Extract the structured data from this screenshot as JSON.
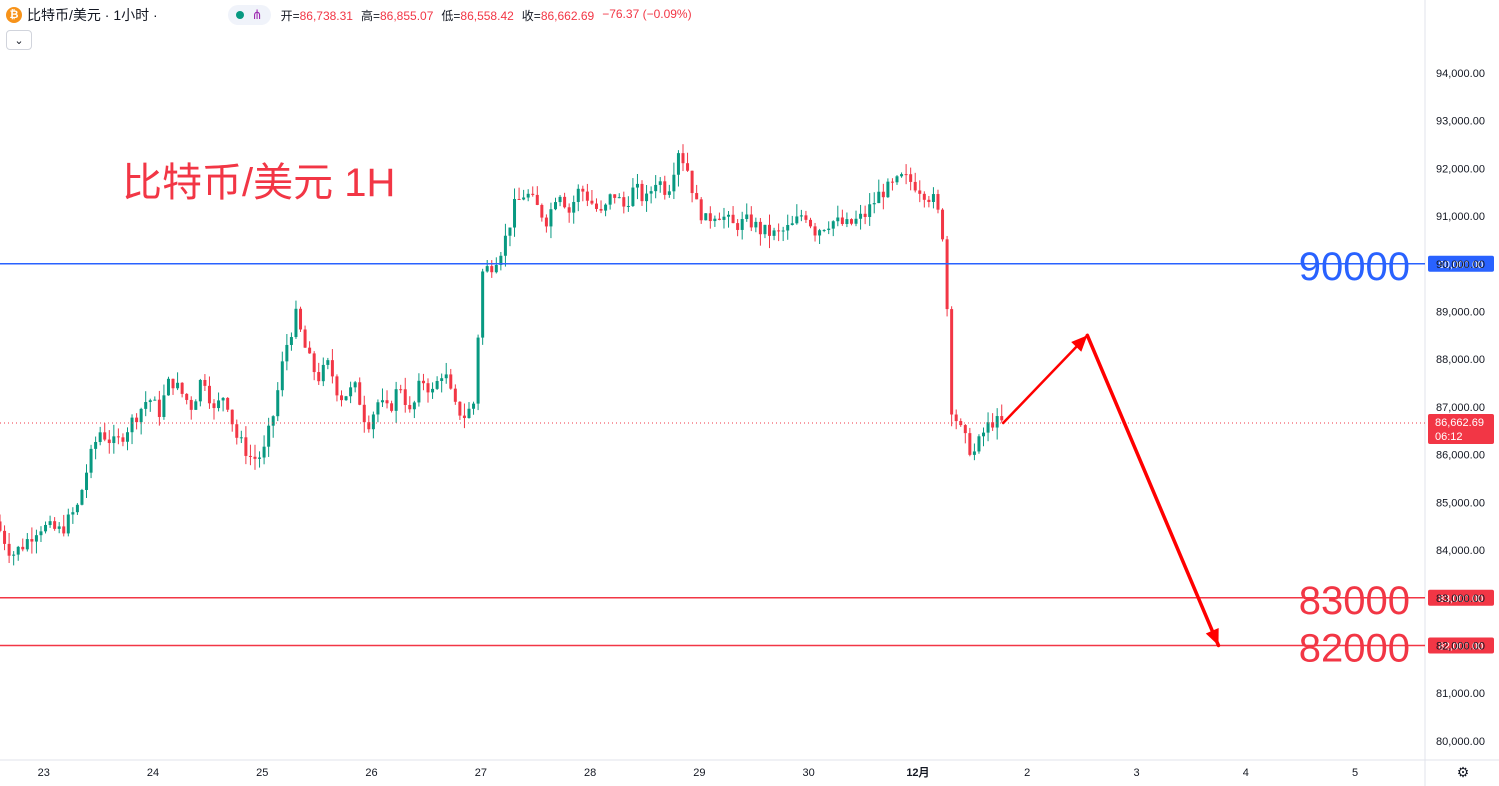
{
  "header": {
    "symbol": "比特币/美元 · 1小时 ·",
    "coin_icon": "bitcoin-icon",
    "open_label": "开=",
    "open_value": "86,738.31",
    "high_label": "高=",
    "high_value": "86,855.07",
    "low_label": "低=",
    "low_value": "86,558.42",
    "close_label": "收=",
    "close_value": "86,662.69",
    "change_value": "−76.37 (−0.09%)"
  },
  "collapse_icon": "chevron-down-icon",
  "colors": {
    "up": "#089981",
    "down": "#f23645",
    "resistance": "#2962ff",
    "support": "#f23645",
    "arrow": "#ff0000"
  },
  "chart_data": {
    "type": "candlestick",
    "title": "比特币/美元 1H",
    "ylim": [
      79600,
      94900
    ],
    "y_ticks": [
      80000,
      81000,
      82000,
      83000,
      84000,
      85000,
      86000,
      87000,
      88000,
      89000,
      90000,
      91000,
      92000,
      93000,
      94000
    ],
    "y_tick_labels": [
      "80,000.00",
      "81,000.00",
      "82,000.00",
      "83,000.00",
      "84,000.00",
      "85,000.00",
      "86,000.00",
      "87,000.00",
      "88,000.00",
      "89,000.00",
      "90,000.00",
      "91,000.00",
      "92,000.00",
      "93,000.00",
      "94,000.00"
    ],
    "x_ticks": [
      {
        "label": "23",
        "day": 0
      },
      {
        "label": "24",
        "day": 1
      },
      {
        "label": "25",
        "day": 2
      },
      {
        "label": "26",
        "day": 3
      },
      {
        "label": "27",
        "day": 4
      },
      {
        "label": "28",
        "day": 5
      },
      {
        "label": "29",
        "day": 6
      },
      {
        "label": "30",
        "day": 7
      },
      {
        "label": "12月",
        "day": 8,
        "bold": true
      },
      {
        "label": "2",
        "day": 9
      },
      {
        "label": "3",
        "day": 10
      },
      {
        "label": "4",
        "day": 11
      },
      {
        "label": "5",
        "day": 12
      }
    ],
    "x_range_days": [
      -0.4,
      12.64
    ],
    "last_day": 8.78,
    "waypoints": [
      [
        -0.4,
        84600
      ],
      [
        -0.25,
        83900
      ],
      [
        -0.15,
        84100
      ],
      [
        0,
        84500
      ],
      [
        0.2,
        84400
      ],
      [
        0.35,
        84900
      ],
      [
        0.45,
        85800
      ],
      [
        0.55,
        86500
      ],
      [
        0.7,
        86200
      ],
      [
        0.85,
        86700
      ],
      [
        1.0,
        87200
      ],
      [
        1.1,
        86900
      ],
      [
        1.2,
        87600
      ],
      [
        1.3,
        87300
      ],
      [
        1.4,
        87000
      ],
      [
        1.5,
        87700
      ],
      [
        1.6,
        86900
      ],
      [
        1.7,
        87300
      ],
      [
        1.8,
        86400
      ],
      [
        1.95,
        85900
      ],
      [
        2.05,
        86000
      ],
      [
        2.15,
        86900
      ],
      [
        2.25,
        88200
      ],
      [
        2.35,
        88900
      ],
      [
        2.45,
        88100
      ],
      [
        2.55,
        87600
      ],
      [
        2.65,
        87900
      ],
      [
        2.75,
        87200
      ],
      [
        2.9,
        87400
      ],
      [
        3.0,
        86600
      ],
      [
        3.1,
        87100
      ],
      [
        3.2,
        86900
      ],
      [
        3.3,
        87500
      ],
      [
        3.4,
        86800
      ],
      [
        3.5,
        87600
      ],
      [
        3.6,
        87300
      ],
      [
        3.7,
        87800
      ],
      [
        3.8,
        87000
      ],
      [
        3.9,
        86800
      ],
      [
        3.98,
        87100
      ],
      [
        4.05,
        89800
      ],
      [
        4.15,
        90000
      ],
      [
        4.25,
        90400
      ],
      [
        4.35,
        91200
      ],
      [
        4.45,
        91500
      ],
      [
        4.55,
        91200
      ],
      [
        4.65,
        90900
      ],
      [
        4.75,
        91600
      ],
      [
        4.85,
        91100
      ],
      [
        4.95,
        91600
      ],
      [
        5.05,
        91300
      ],
      [
        5.15,
        91000
      ],
      [
        5.25,
        91500
      ],
      [
        5.35,
        91200
      ],
      [
        5.45,
        91600
      ],
      [
        5.55,
        91300
      ],
      [
        5.65,
        91800
      ],
      [
        5.75,
        91500
      ],
      [
        5.85,
        92400
      ],
      [
        5.95,
        91900
      ],
      [
        6.0,
        91300
      ],
      [
        6.1,
        90900
      ],
      [
        6.2,
        91100
      ],
      [
        6.35,
        90800
      ],
      [
        6.5,
        90900
      ],
      [
        6.6,
        90700
      ],
      [
        6.75,
        90600
      ],
      [
        6.9,
        90800
      ],
      [
        7.0,
        91100
      ],
      [
        7.1,
        90700
      ],
      [
        7.25,
        90900
      ],
      [
        7.4,
        90800
      ],
      [
        7.55,
        91000
      ],
      [
        7.7,
        91500
      ],
      [
        7.8,
        91600
      ],
      [
        7.9,
        91800
      ],
      [
        8.0,
        91700
      ],
      [
        8.1,
        91500
      ],
      [
        8.2,
        91300
      ],
      [
        8.28,
        90500
      ],
      [
        8.35,
        87000
      ],
      [
        8.45,
        86400
      ],
      [
        8.55,
        86000
      ],
      [
        8.65,
        86500
      ],
      [
        8.72,
        86700
      ],
      [
        8.78,
        86663
      ]
    ],
    "projection": {
      "points": [
        [
          8.78,
          86663
        ],
        [
          9.55,
          88500
        ],
        [
          10.75,
          82000
        ]
      ],
      "color": "#ff0000"
    },
    "levels": [
      {
        "value": 90000,
        "label": "90000",
        "axis_label": "90,000.00",
        "color": "#2962ff"
      },
      {
        "value": 83000,
        "label": "83000",
        "axis_label": "83,000.00",
        "color": "#f23645"
      },
      {
        "value": 82000,
        "label": "82000",
        "axis_label": "82,000.00",
        "color": "#f23645"
      }
    ],
    "current_price": {
      "value": 86662.69,
      "label": "86,662.69",
      "countdown": "06:12",
      "color": "#f23645"
    }
  }
}
